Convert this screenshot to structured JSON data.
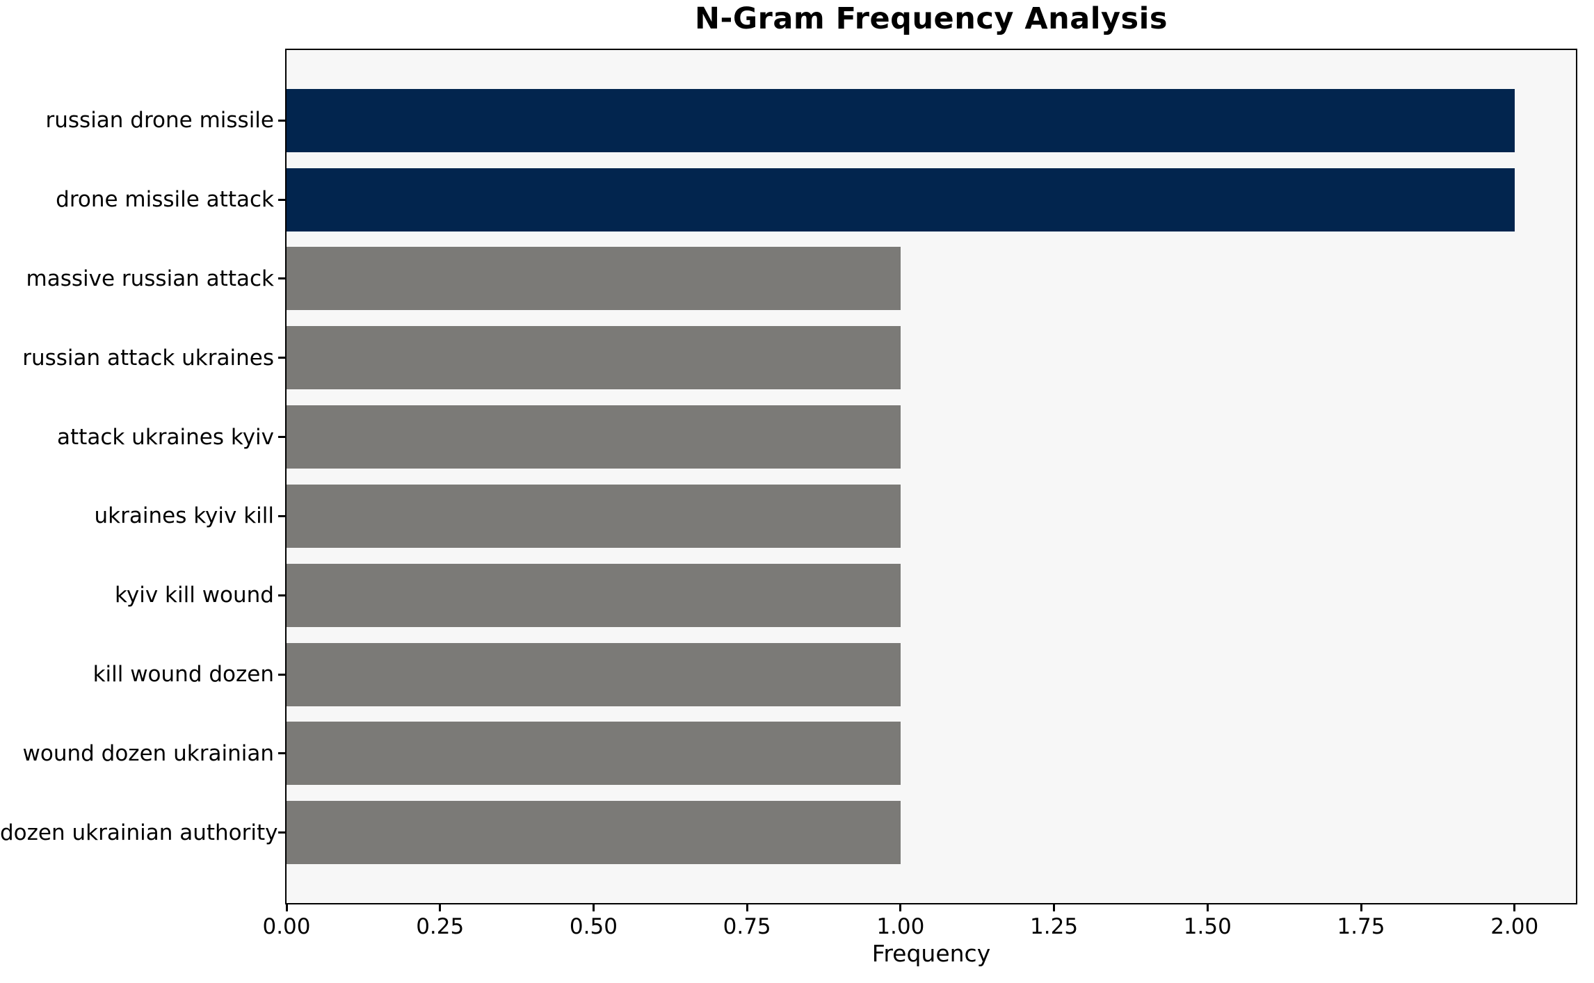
{
  "chart_data": {
    "type": "bar",
    "orientation": "horizontal",
    "title": "N-Gram Frequency Analysis",
    "xlabel": "Frequency",
    "ylabel": "",
    "categories": [
      "russian drone missile",
      "drone missile attack",
      "massive russian attack",
      "russian attack ukraines",
      "attack ukraines kyiv",
      "ukraines kyiv kill",
      "kyiv kill wound",
      "kill wound dozen",
      "wound dozen ukrainian",
      "dozen ukrainian authority"
    ],
    "values": [
      2,
      2,
      1,
      1,
      1,
      1,
      1,
      1,
      1,
      1
    ],
    "bar_colors": [
      "#02254e",
      "#02254e",
      "#7b7a77",
      "#7b7a77",
      "#7b7a77",
      "#7b7a77",
      "#7b7a77",
      "#7b7a77",
      "#7b7a77",
      "#7b7a77"
    ],
    "highlight_color": "#02254e",
    "default_color": "#7b7a77",
    "xlim": [
      0,
      2.1
    ],
    "x_tick_labels": [
      "0.00",
      "0.25",
      "0.50",
      "0.75",
      "1.00",
      "1.25",
      "1.50",
      "1.75",
      "2.00"
    ],
    "x_tick_values": [
      0,
      0.25,
      0.5,
      0.75,
      1.0,
      1.25,
      1.5,
      1.75,
      2.0
    ],
    "grid": false,
    "legend": "none",
    "plot_background": "#f7f7f7",
    "figure_background": "#ffffff",
    "spine_color": "#000000",
    "text_color": "#000000"
  }
}
